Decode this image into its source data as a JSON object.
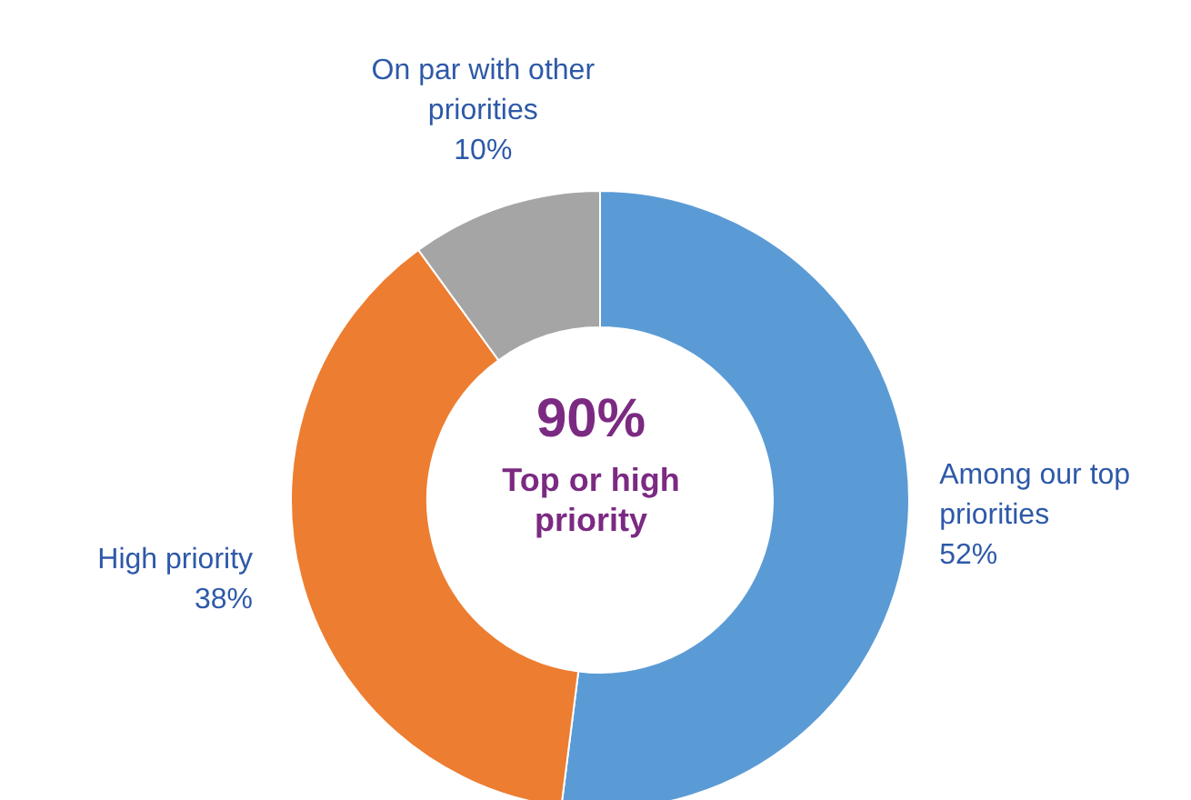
{
  "chart_data": {
    "type": "donut",
    "categories": [
      "Among our top priorities",
      "High priority",
      "On par with other priorities"
    ],
    "values": [
      52,
      38,
      10
    ],
    "colors": [
      "#5b9bd5",
      "#ed7d31",
      "#a5a5a5"
    ],
    "value_labels": [
      "52%",
      "38%",
      "10%"
    ],
    "annotations": [
      "90%",
      "Top or high priority"
    ],
    "legend": false
  }
}
